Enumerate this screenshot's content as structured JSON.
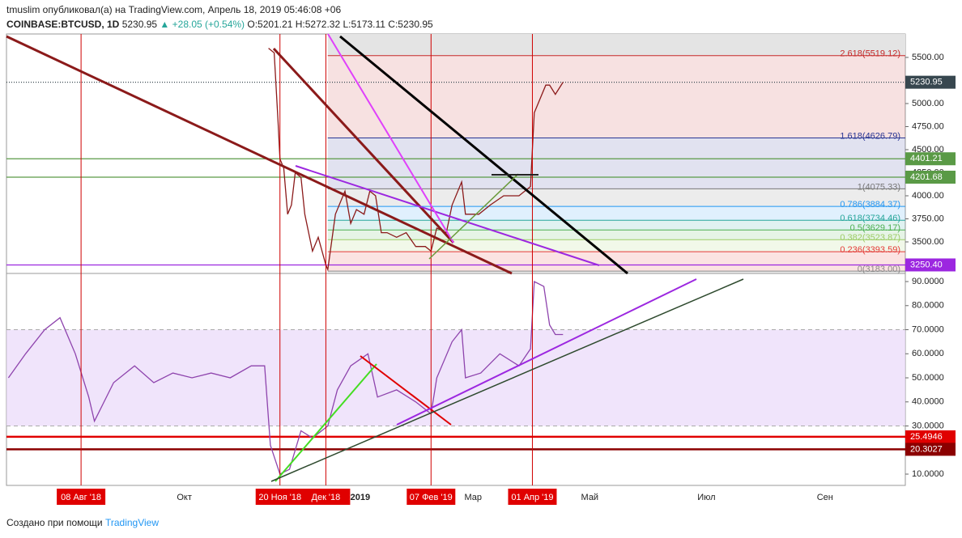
{
  "header": {
    "published": "tmuslim опубликовал(а) на TradingView.com, Апрель 18, 2019 05:46:08 +06",
    "symbol": "COINBASE:BTCUSD, 1D",
    "last": "5230.95",
    "change": "▲ +28.05 (+0.54%)",
    "ohlc": "O:5201.21 H:5272.32 L:5173.11 C:5230.95"
  },
  "footer": {
    "text": "Создано при помощи",
    "brand": "TradingView"
  },
  "chart_data": [
    {
      "type": "line",
      "name": "price",
      "x": [
        "2018-11-14",
        "2018-11-17",
        "2018-11-19",
        "2018-11-20",
        "2018-11-22",
        "2018-11-24",
        "2018-11-26",
        "2018-11-28",
        "2018-12-01",
        "2018-12-03",
        "2018-12-07",
        "2018-12-10",
        "2018-12-14",
        "2018-12-15",
        "2018-12-17",
        "2018-12-19",
        "2018-12-21",
        "2018-12-24",
        "2018-12-27",
        "2018-12-30",
        "2019-01-03",
        "2019-01-06",
        "2019-01-09",
        "2019-01-12",
        "2019-01-15",
        "2019-01-20",
        "2019-01-25",
        "2019-01-30",
        "2019-02-04",
        "2019-02-07",
        "2019-02-10",
        "2019-02-15",
        "2019-02-18",
        "2019-02-23",
        "2019-02-25",
        "2019-03-04",
        "2019-03-10",
        "2019-03-17",
        "2019-03-25",
        "2019-03-31",
        "2019-04-02",
        "2019-04-05",
        "2019-04-08",
        "2019-04-10",
        "2019-04-13",
        "2019-04-17"
      ],
      "series": [
        {
          "name": "BTCUSD",
          "color": "#8b1a1a",
          "values": [
            5600,
            5550,
            4800,
            4400,
            4300,
            3800,
            3900,
            4250,
            4200,
            3800,
            3400,
            3550,
            3250,
            3200,
            3500,
            3800,
            3900,
            4050,
            3700,
            3850,
            3800,
            4050,
            4000,
            3600,
            3600,
            3550,
            3600,
            3450,
            3450,
            3400,
            3650,
            3600,
            3900,
            4150,
            3800,
            3800,
            3900,
            4000,
            4000,
            4100,
            4900,
            5050,
            5200,
            5200,
            5100,
            5230.95
          ]
        }
      ],
      "xlim": [
        "2018-06-30",
        "2019-10-13"
      ],
      "ylim": [
        3158,
        5754
      ],
      "yticks": [
        {
          "value": 3500,
          "label": "3500.00"
        },
        {
          "value": 3750,
          "label": "3750.00"
        },
        {
          "value": 4000,
          "label": "4000.00"
        },
        {
          "value": 4250,
          "label": "4250.00"
        },
        {
          "value": 4500,
          "label": "4500.00"
        },
        {
          "value": 4750,
          "label": "4750.00"
        },
        {
          "value": 5000,
          "label": "5000.00"
        },
        {
          "value": 5250,
          "label": "5250.00"
        },
        {
          "value": 5500,
          "label": "5500.00"
        }
      ],
      "fib_start": "2018-12-15",
      "fib_levels": [
        {
          "value": 5519.12,
          "label": "2.618(5519.12)",
          "color": "#c62828"
        },
        {
          "value": 4626.79,
          "label": "1.618(4626.79)",
          "color": "#283593"
        },
        {
          "value": 4075.33,
          "label": "1(4075.33)",
          "color": "#777777"
        },
        {
          "value": 3884.37,
          "label": "0.786(3884.37)",
          "color": "#2196f3"
        },
        {
          "value": 3734.46,
          "label": "0.618(3734.46)",
          "color": "#26a69a"
        },
        {
          "value": 3629.17,
          "label": "0.5(3629.17)",
          "color": "#4caf50"
        },
        {
          "value": 3523.87,
          "label": "0.382(3523.87)",
          "color": "#9ccc65"
        },
        {
          "value": 3393.59,
          "label": "0.236(3393.59)",
          "color": "#e53935"
        },
        {
          "value": 3183.0,
          "label": "0(3183.00)",
          "color": "#888888"
        }
      ],
      "price_labels": [
        {
          "value": 5230.95,
          "label": "5230.95",
          "color": "#37474f"
        },
        {
          "value": 4401.21,
          "label": "4401.21",
          "color": "#5a9a46"
        },
        {
          "value": 4201.68,
          "label": "4201.68",
          "color": "#5a9a46"
        },
        {
          "value": 3250.4,
          "label": "3250.40",
          "color": "#9c27e0"
        }
      ]
    },
    {
      "type": "line",
      "name": "rsi",
      "x": [
        "2018-07-01",
        "2018-07-10",
        "2018-07-20",
        "2018-07-28",
        "2018-08-05",
        "2018-08-12",
        "2018-08-15",
        "2018-08-25",
        "2018-09-05",
        "2018-09-15",
        "2018-09-25",
        "2018-10-05",
        "2018-10-15",
        "2018-10-25",
        "2018-11-05",
        "2018-11-12",
        "2018-11-15",
        "2018-11-20",
        "2018-11-25",
        "2018-12-01",
        "2018-12-07",
        "2018-12-15",
        "2018-12-20",
        "2018-12-27",
        "2019-01-05",
        "2019-01-10",
        "2019-01-20",
        "2019-01-30",
        "2019-02-07",
        "2019-02-10",
        "2019-02-18",
        "2019-02-23",
        "2019-02-25",
        "2019-03-05",
        "2019-03-15",
        "2019-03-25",
        "2019-03-31",
        "2019-04-02",
        "2019-04-07",
        "2019-04-10",
        "2019-04-13",
        "2019-04-17"
      ],
      "series": [
        {
          "name": "RSI",
          "color": "#8e44ad",
          "values": [
            50,
            60,
            70,
            75,
            60,
            42,
            32,
            48,
            55,
            48,
            52,
            50,
            52,
            50,
            55,
            55,
            22,
            10,
            12,
            28,
            25,
            30,
            45,
            55,
            60,
            42,
            45,
            40,
            35,
            50,
            65,
            70,
            50,
            52,
            60,
            55,
            62,
            90,
            88,
            72,
            68,
            68
          ]
        }
      ],
      "xlim": [
        "2018-06-30",
        "2019-10-13"
      ],
      "ylim": [
        5.3,
        92.7
      ],
      "band": [
        30,
        70
      ],
      "yticks": [
        {
          "value": 10,
          "label": "10.0000"
        },
        {
          "value": 20,
          "label": "20.0000"
        },
        {
          "value": 30,
          "label": "30.0000"
        },
        {
          "value": 40,
          "label": "40.0000"
        },
        {
          "value": 50,
          "label": "50.0000"
        },
        {
          "value": 60,
          "label": "60.0000"
        },
        {
          "value": 70,
          "label": "70.0000"
        },
        {
          "value": 80,
          "label": "80.0000"
        },
        {
          "value": 90,
          "label": "90.0000"
        }
      ],
      "level_labels": [
        {
          "value": 25.4946,
          "label": "25.4946",
          "color": "#e00000"
        },
        {
          "value": 20.3027,
          "label": "20.3027",
          "color": "#8b0000"
        }
      ],
      "xticks": [
        {
          "value": "2018-08-08",
          "label": "08 Авг '18",
          "highlight": true
        },
        {
          "value": "2018-10-01",
          "label": "Окт",
          "highlight": false
        },
        {
          "value": "2018-11-20",
          "label": "20 Ноя '18",
          "highlight": true
        },
        {
          "value": "2018-12-14",
          "label": "Дек '18",
          "highlight": true
        },
        {
          "value": "2019-01-01",
          "label": "2019",
          "highlight": false
        },
        {
          "value": "2019-02-07",
          "label": "07 Фев '19",
          "highlight": true
        },
        {
          "value": "2019-03-01",
          "label": "Мар",
          "highlight": false
        },
        {
          "value": "2019-04-01",
          "label": "01 Апр '19",
          "highlight": true
        },
        {
          "value": "2019-05-01",
          "label": "Май",
          "highlight": false
        },
        {
          "value": "2019-07-01",
          "label": "Июл",
          "highlight": false
        },
        {
          "value": "2019-09-01",
          "label": "Сен",
          "highlight": false
        }
      ]
    }
  ]
}
